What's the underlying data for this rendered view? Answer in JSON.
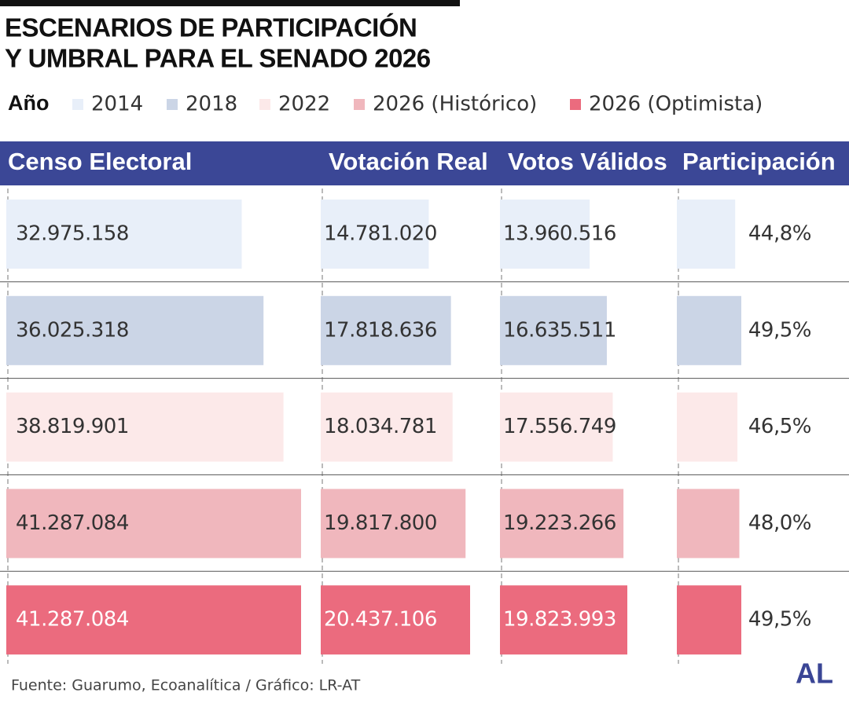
{
  "chart_data": {
    "type": "bar-table",
    "title": [
      "ESCENARIOS DE PARTICIPACIÓN",
      "Y UMBRAL PARA EL SENADO 2026"
    ],
    "legend_title": "Año",
    "categories": [
      "2014",
      "2018",
      "2022",
      "2026 (Histórico)",
      "2026 (Optimista)"
    ],
    "colors": [
      "#e8eff9",
      "#cbd5e6",
      "#fce9e9",
      "#f0b7bd",
      "#eb6b7e"
    ],
    "columns": [
      {
        "name": "Censo Electoral",
        "values": [
          32975158,
          36025318,
          38819901,
          41287084,
          41287084
        ],
        "value_labels": [
          "32.975.158",
          "36.025.318",
          "38.819.901",
          "41.287.084",
          "41.287.084"
        ]
      },
      {
        "name": "Votación Real",
        "values": [
          14781020,
          17818636,
          18034781,
          19817800,
          20437106
        ],
        "value_labels": [
          "14.781.020",
          "17.818.636",
          "18.034.781",
          "19.817.800",
          "20.437.106"
        ]
      },
      {
        "name": "Votos Válidos",
        "values": [
          13960516,
          16635511,
          17556749,
          19223266,
          19823993
        ],
        "value_labels": [
          "13.960.516",
          "16.635.511",
          "17.556.749",
          "19.223.266",
          "19.823.993"
        ]
      },
      {
        "name": "Participación",
        "values": [
          44.8,
          49.5,
          46.5,
          48.0,
          49.5
        ],
        "value_labels": [
          "44,8%",
          "49,5%",
          "46,5%",
          "48,0%",
          "49,5%"
        ]
      }
    ],
    "source": "Fuente: Guarumo, Ecoanalítica / Gráfico: LR-AT",
    "logo": "AL"
  }
}
